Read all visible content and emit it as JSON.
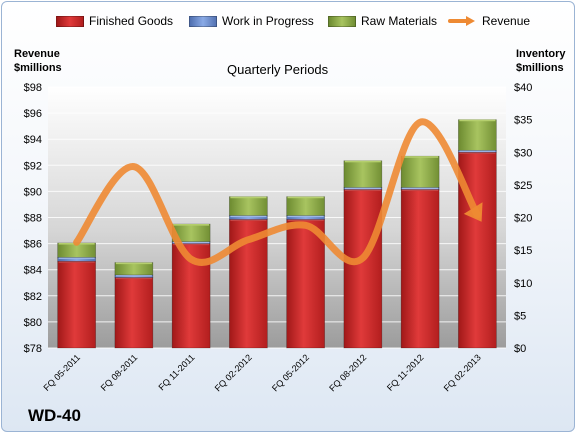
{
  "chart_data": {
    "type": "bar",
    "subtype": "stacked-bar-with-line",
    "title": "Quarterly Periods",
    "company_label": "WD-40",
    "categories": [
      "FQ 05-2011",
      "FQ 08-2011",
      "FQ 11-2011",
      "FQ 02-2012",
      "FQ 05-2012",
      "FQ 08-2012",
      "FQ 11-2012",
      "FQ 02-2013"
    ],
    "series": [
      {
        "name": "Finished Goods",
        "axis": "right",
        "color": "#d42a2a",
        "values": [
          13.3,
          10.8,
          16.0,
          19.7,
          19.7,
          24.3,
          24.3,
          30.0
        ]
      },
      {
        "name": "Work in Progress",
        "axis": "right",
        "color": "#6d8fd0",
        "values": [
          0.6,
          0.4,
          0.3,
          0.6,
          0.6,
          0.3,
          0.3,
          0.3
        ]
      },
      {
        "name": "Raw Materials",
        "axis": "right",
        "color": "#8fae4a",
        "values": [
          2.2,
          1.9,
          2.7,
          2.9,
          2.9,
          4.1,
          4.8,
          4.7
        ]
      }
    ],
    "line_series": {
      "name": "Revenue",
      "axis": "left",
      "color": "#ee8a33",
      "values": [
        86.1,
        91.9,
        84.8,
        86.3,
        87.4,
        84.9,
        95.3,
        88.2
      ]
    },
    "left_axis": {
      "label": "Revenue\n$millions",
      "min": 78,
      "max": 98,
      "step": 2,
      "tick_labels": [
        "$78",
        "$80",
        "$82",
        "$84",
        "$86",
        "$88",
        "$90",
        "$92",
        "$94",
        "$96",
        "$98"
      ]
    },
    "right_axis": {
      "label": "Inventory\n$millions",
      "min": 0,
      "max": 40,
      "step": 5,
      "tick_labels": [
        "$0",
        "$5",
        "$10",
        "$15",
        "$20",
        "$25",
        "$30",
        "$35",
        "$40"
      ]
    },
    "grid": true,
    "legend_position": "top"
  },
  "colors": {
    "plot_background_top": "#ffffff",
    "plot_background_bottom": "#9a9a9a",
    "grid": "#ffffff",
    "frame_border": "#9bb4d4"
  }
}
